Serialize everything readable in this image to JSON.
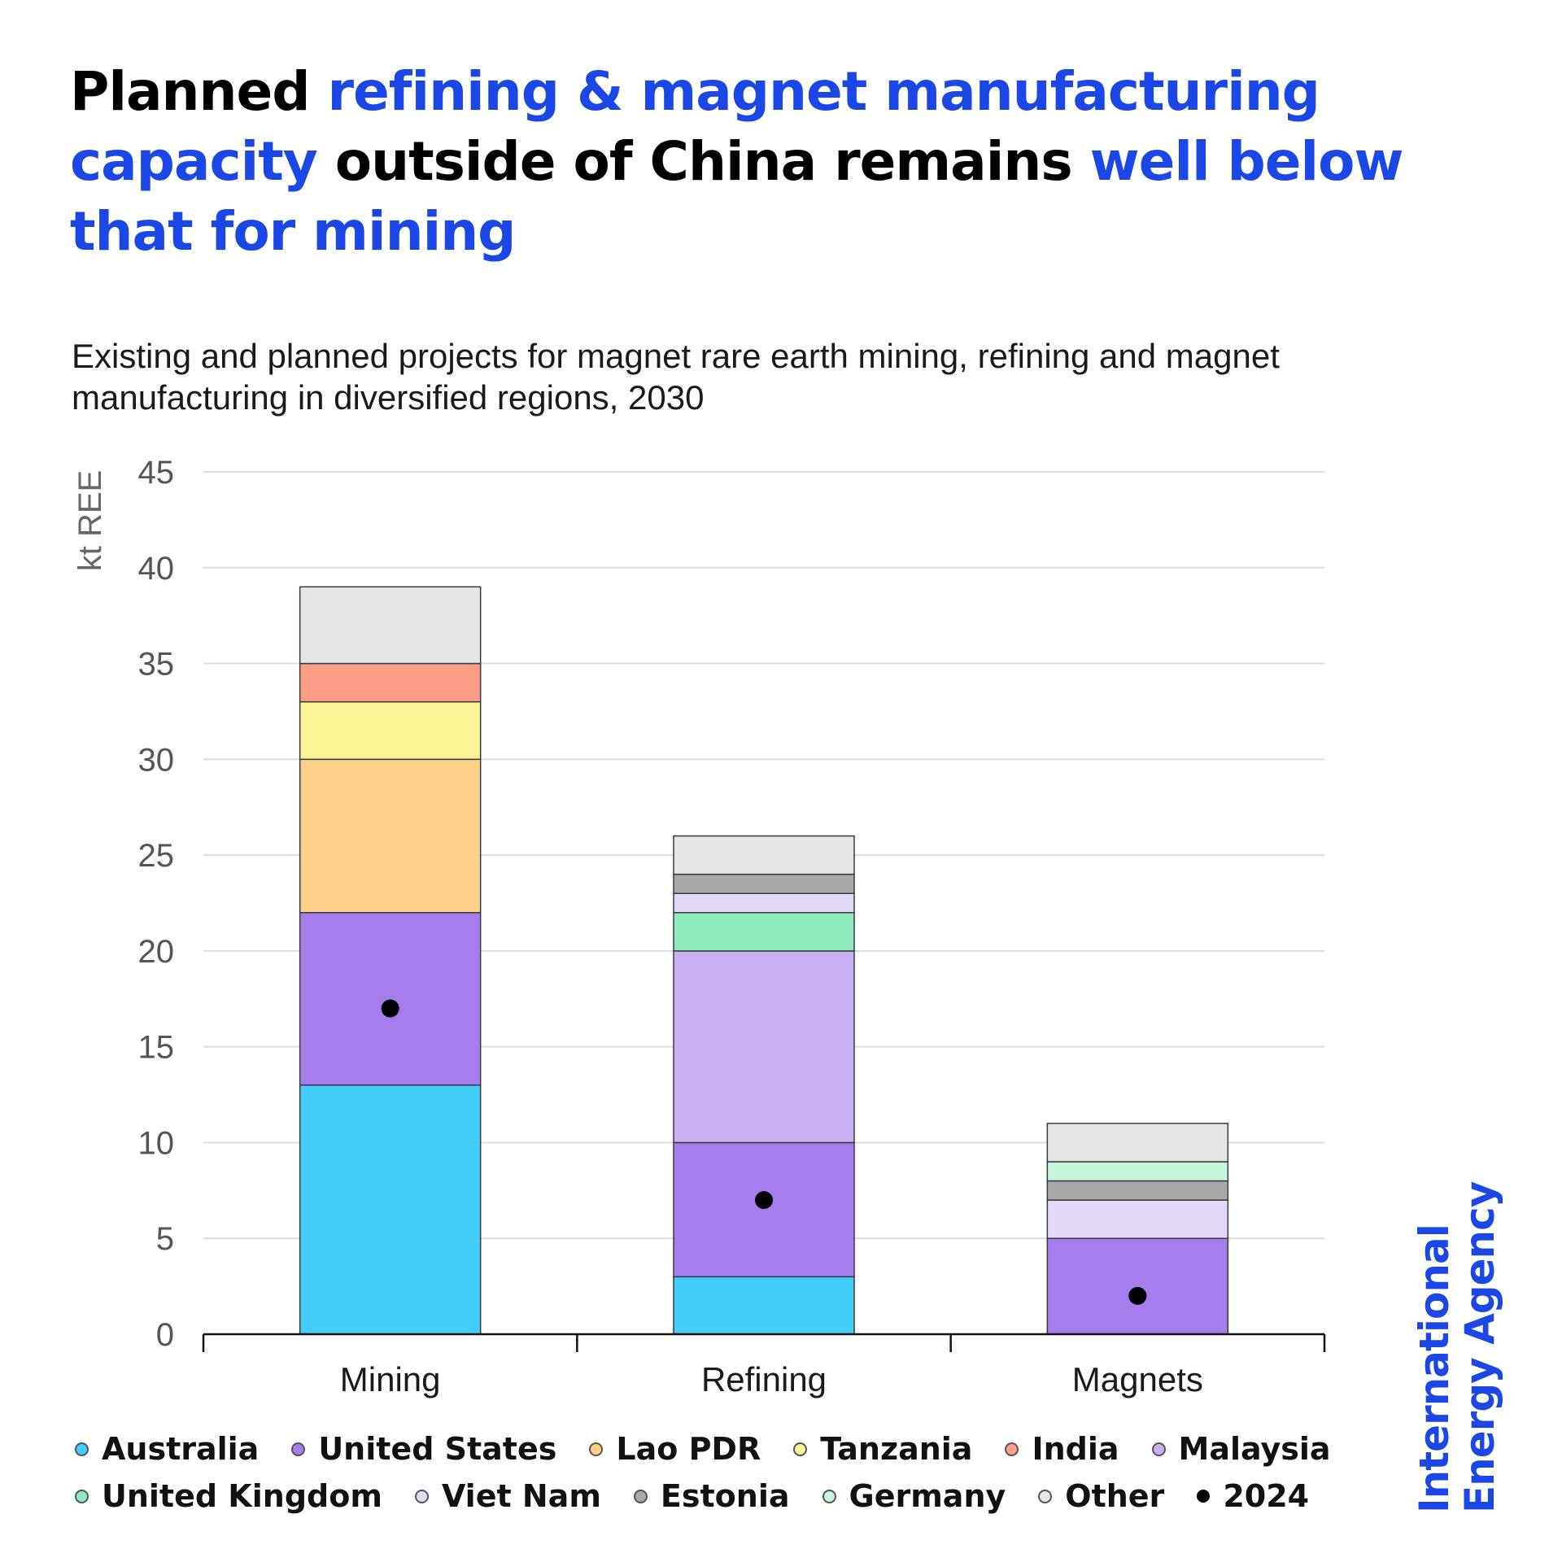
{
  "title": {
    "parts": [
      {
        "text": "Planned ",
        "highlight": false
      },
      {
        "text": "refining & magnet manufacturing capacity",
        "highlight": true
      },
      {
        "text": " outside of China remains ",
        "highlight": false
      },
      {
        "text": "well below that for mining",
        "highlight": true
      }
    ],
    "colors": {
      "normal": "#000000",
      "highlight": "#1a47e5"
    }
  },
  "subtitle": "Existing and planned projects for magnet rare earth mining, refining and magnet manufacturing in diversified regions, 2030",
  "chart_data": {
    "type": "bar",
    "stacked": true,
    "ylabel": "kt REE",
    "ylim": [
      0,
      45
    ],
    "yticks": [
      0,
      5,
      10,
      15,
      20,
      25,
      30,
      35,
      40,
      45
    ],
    "grid": true,
    "categories": [
      "Mining",
      "Refining",
      "Magnets"
    ],
    "series": [
      {
        "name": "Australia",
        "color": "#42cdfb",
        "values": [
          13,
          3,
          0
        ]
      },
      {
        "name": "United States",
        "color": "#a67ded",
        "values": [
          9,
          7,
          5
        ]
      },
      {
        "name": "Lao PDR",
        "color": "#fecf88",
        "values": [
          8,
          0,
          0
        ]
      },
      {
        "name": "Tanzania",
        "color": "#fbf595",
        "values": [
          3,
          0,
          0
        ]
      },
      {
        "name": "India",
        "color": "#fd9d88",
        "values": [
          2,
          0,
          0
        ]
      },
      {
        "name": "Malaysia",
        "color": "#c9b0f3",
        "values": [
          0,
          10,
          0
        ]
      },
      {
        "name": "United Kingdom",
        "color": "#8eeabc",
        "values": [
          0,
          2,
          0
        ]
      },
      {
        "name": "Viet Nam",
        "color": "#e4d8f8",
        "values": [
          0,
          1,
          2
        ]
      },
      {
        "name": "Estonia",
        "color": "#a9a9a9",
        "values": [
          0,
          1,
          1
        ]
      },
      {
        "name": "Germany",
        "color": "#c7f5dc",
        "values": [
          0,
          0,
          1
        ]
      },
      {
        "name": "Other",
        "color": "#e5e5e5",
        "values": [
          4,
          2,
          2
        ]
      }
    ],
    "markers": {
      "name": "2024",
      "color": "#000000",
      "values": [
        17,
        7,
        2
      ]
    }
  },
  "legend": {
    "rows": [
      [
        "Australia",
        "United States",
        "Lao PDR",
        "Tanzania",
        "India",
        "Malaysia"
      ],
      [
        "United Kingdom",
        "Viet Nam",
        "Estonia",
        "Germany",
        "Other",
        "2024"
      ]
    ]
  },
  "brand": {
    "line1": "International",
    "line2": "Energy Agency",
    "color": "#1a47e5"
  }
}
